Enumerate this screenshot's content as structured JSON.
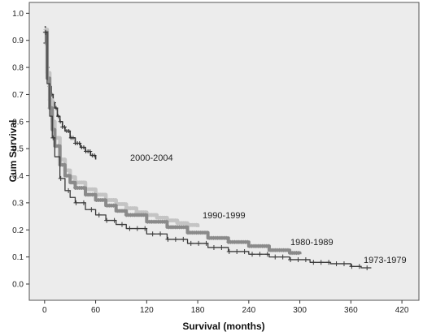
{
  "chart_data": {
    "type": "line",
    "xlabel": "Survival (months)",
    "ylabel": "Cum Survival",
    "xlim": [
      -18,
      440
    ],
    "ylim": [
      -0.06,
      1.04
    ],
    "x_ticks": [
      0,
      60,
      120,
      180,
      240,
      300,
      360,
      420
    ],
    "y_ticks": [
      0.0,
      0.1,
      0.2,
      0.3,
      0.4,
      0.5,
      0.6,
      0.7,
      0.8,
      0.9,
      1.0
    ],
    "grid": false,
    "plot_background": "#ececec",
    "series": [
      {
        "name": "2000-2004",
        "color": "#333333",
        "marker": "plus-dense",
        "x": [
          0,
          1,
          2,
          3,
          4,
          5,
          6,
          8,
          10,
          12,
          15,
          18,
          21,
          24,
          30,
          36,
          42,
          48,
          54,
          60
        ],
        "y": [
          0.95,
          0.89,
          0.84,
          0.8,
          0.77,
          0.75,
          0.73,
          0.7,
          0.67,
          0.65,
          0.62,
          0.6,
          0.58,
          0.565,
          0.54,
          0.52,
          0.505,
          0.49,
          0.475,
          0.46
        ]
      },
      {
        "name": "1990-1999",
        "color": "#c4c4c4",
        "marker": "plus-dense",
        "x": [
          0,
          3,
          6,
          9,
          12,
          18,
          24,
          30,
          36,
          48,
          60,
          72,
          84,
          96,
          108,
          120,
          132,
          144,
          156,
          168,
          180
        ],
        "y": [
          0.94,
          0.78,
          0.68,
          0.6,
          0.54,
          0.46,
          0.42,
          0.395,
          0.375,
          0.35,
          0.33,
          0.31,
          0.295,
          0.28,
          0.265,
          0.255,
          0.245,
          0.235,
          0.225,
          0.218,
          0.21
        ]
      },
      {
        "name": "1980-1989",
        "color": "#8a8a8a",
        "marker": "plus-dense",
        "x": [
          0,
          3,
          6,
          9,
          12,
          18,
          24,
          30,
          36,
          48,
          60,
          72,
          84,
          96,
          120,
          144,
          168,
          192,
          216,
          240,
          264,
          288,
          300
        ],
        "y": [
          0.93,
          0.76,
          0.65,
          0.57,
          0.51,
          0.44,
          0.4,
          0.375,
          0.355,
          0.33,
          0.31,
          0.29,
          0.27,
          0.255,
          0.23,
          0.21,
          0.19,
          0.17,
          0.155,
          0.14,
          0.125,
          0.115,
          0.11
        ]
      },
      {
        "name": "1973-1979",
        "color": "#3a3a3a",
        "marker": "plus-sparse",
        "x": [
          0,
          3,
          6,
          9,
          12,
          18,
          24,
          30,
          36,
          48,
          60,
          72,
          84,
          96,
          120,
          144,
          168,
          192,
          216,
          240,
          264,
          288,
          312,
          336,
          360,
          372,
          384
        ],
        "y": [
          0.93,
          0.74,
          0.62,
          0.54,
          0.47,
          0.39,
          0.345,
          0.32,
          0.3,
          0.275,
          0.255,
          0.235,
          0.22,
          0.205,
          0.185,
          0.165,
          0.15,
          0.135,
          0.12,
          0.11,
          0.1,
          0.09,
          0.08,
          0.075,
          0.065,
          0.06,
          0.06
        ]
      }
    ]
  }
}
